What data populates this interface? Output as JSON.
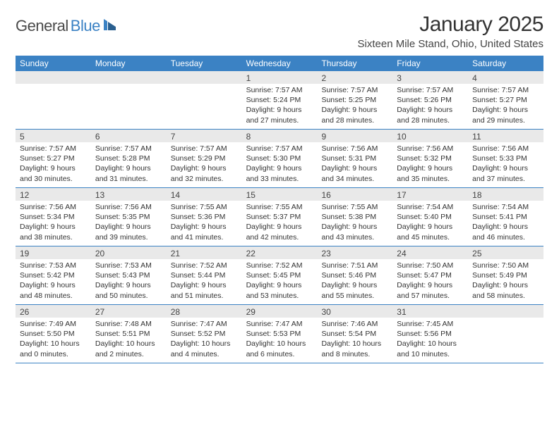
{
  "logo": {
    "text1": "General",
    "text2": "Blue"
  },
  "title": "January 2025",
  "location": "Sixteen Mile Stand, Ohio, United States",
  "weekdays": [
    "Sunday",
    "Monday",
    "Tuesday",
    "Wednesday",
    "Thursday",
    "Friday",
    "Saturday"
  ],
  "colors": {
    "header_bg": "#3b82c4",
    "daynum_bg": "#e9e9e9",
    "text": "#333333",
    "border": "#3b82c4"
  },
  "weeks": [
    [
      {
        "n": "",
        "lines": []
      },
      {
        "n": "",
        "lines": []
      },
      {
        "n": "",
        "lines": []
      },
      {
        "n": "1",
        "lines": [
          "Sunrise: 7:57 AM",
          "Sunset: 5:24 PM",
          "Daylight: 9 hours",
          "and 27 minutes."
        ]
      },
      {
        "n": "2",
        "lines": [
          "Sunrise: 7:57 AM",
          "Sunset: 5:25 PM",
          "Daylight: 9 hours",
          "and 28 minutes."
        ]
      },
      {
        "n": "3",
        "lines": [
          "Sunrise: 7:57 AM",
          "Sunset: 5:26 PM",
          "Daylight: 9 hours",
          "and 28 minutes."
        ]
      },
      {
        "n": "4",
        "lines": [
          "Sunrise: 7:57 AM",
          "Sunset: 5:27 PM",
          "Daylight: 9 hours",
          "and 29 minutes."
        ]
      }
    ],
    [
      {
        "n": "5",
        "lines": [
          "Sunrise: 7:57 AM",
          "Sunset: 5:27 PM",
          "Daylight: 9 hours",
          "and 30 minutes."
        ]
      },
      {
        "n": "6",
        "lines": [
          "Sunrise: 7:57 AM",
          "Sunset: 5:28 PM",
          "Daylight: 9 hours",
          "and 31 minutes."
        ]
      },
      {
        "n": "7",
        "lines": [
          "Sunrise: 7:57 AM",
          "Sunset: 5:29 PM",
          "Daylight: 9 hours",
          "and 32 minutes."
        ]
      },
      {
        "n": "8",
        "lines": [
          "Sunrise: 7:57 AM",
          "Sunset: 5:30 PM",
          "Daylight: 9 hours",
          "and 33 minutes."
        ]
      },
      {
        "n": "9",
        "lines": [
          "Sunrise: 7:56 AM",
          "Sunset: 5:31 PM",
          "Daylight: 9 hours",
          "and 34 minutes."
        ]
      },
      {
        "n": "10",
        "lines": [
          "Sunrise: 7:56 AM",
          "Sunset: 5:32 PM",
          "Daylight: 9 hours",
          "and 35 minutes."
        ]
      },
      {
        "n": "11",
        "lines": [
          "Sunrise: 7:56 AM",
          "Sunset: 5:33 PM",
          "Daylight: 9 hours",
          "and 37 minutes."
        ]
      }
    ],
    [
      {
        "n": "12",
        "lines": [
          "Sunrise: 7:56 AM",
          "Sunset: 5:34 PM",
          "Daylight: 9 hours",
          "and 38 minutes."
        ]
      },
      {
        "n": "13",
        "lines": [
          "Sunrise: 7:56 AM",
          "Sunset: 5:35 PM",
          "Daylight: 9 hours",
          "and 39 minutes."
        ]
      },
      {
        "n": "14",
        "lines": [
          "Sunrise: 7:55 AM",
          "Sunset: 5:36 PM",
          "Daylight: 9 hours",
          "and 41 minutes."
        ]
      },
      {
        "n": "15",
        "lines": [
          "Sunrise: 7:55 AM",
          "Sunset: 5:37 PM",
          "Daylight: 9 hours",
          "and 42 minutes."
        ]
      },
      {
        "n": "16",
        "lines": [
          "Sunrise: 7:55 AM",
          "Sunset: 5:38 PM",
          "Daylight: 9 hours",
          "and 43 minutes."
        ]
      },
      {
        "n": "17",
        "lines": [
          "Sunrise: 7:54 AM",
          "Sunset: 5:40 PM",
          "Daylight: 9 hours",
          "and 45 minutes."
        ]
      },
      {
        "n": "18",
        "lines": [
          "Sunrise: 7:54 AM",
          "Sunset: 5:41 PM",
          "Daylight: 9 hours",
          "and 46 minutes."
        ]
      }
    ],
    [
      {
        "n": "19",
        "lines": [
          "Sunrise: 7:53 AM",
          "Sunset: 5:42 PM",
          "Daylight: 9 hours",
          "and 48 minutes."
        ]
      },
      {
        "n": "20",
        "lines": [
          "Sunrise: 7:53 AM",
          "Sunset: 5:43 PM",
          "Daylight: 9 hours",
          "and 50 minutes."
        ]
      },
      {
        "n": "21",
        "lines": [
          "Sunrise: 7:52 AM",
          "Sunset: 5:44 PM",
          "Daylight: 9 hours",
          "and 51 minutes."
        ]
      },
      {
        "n": "22",
        "lines": [
          "Sunrise: 7:52 AM",
          "Sunset: 5:45 PM",
          "Daylight: 9 hours",
          "and 53 minutes."
        ]
      },
      {
        "n": "23",
        "lines": [
          "Sunrise: 7:51 AM",
          "Sunset: 5:46 PM",
          "Daylight: 9 hours",
          "and 55 minutes."
        ]
      },
      {
        "n": "24",
        "lines": [
          "Sunrise: 7:50 AM",
          "Sunset: 5:47 PM",
          "Daylight: 9 hours",
          "and 57 minutes."
        ]
      },
      {
        "n": "25",
        "lines": [
          "Sunrise: 7:50 AM",
          "Sunset: 5:49 PM",
          "Daylight: 9 hours",
          "and 58 minutes."
        ]
      }
    ],
    [
      {
        "n": "26",
        "lines": [
          "Sunrise: 7:49 AM",
          "Sunset: 5:50 PM",
          "Daylight: 10 hours",
          "and 0 minutes."
        ]
      },
      {
        "n": "27",
        "lines": [
          "Sunrise: 7:48 AM",
          "Sunset: 5:51 PM",
          "Daylight: 10 hours",
          "and 2 minutes."
        ]
      },
      {
        "n": "28",
        "lines": [
          "Sunrise: 7:47 AM",
          "Sunset: 5:52 PM",
          "Daylight: 10 hours",
          "and 4 minutes."
        ]
      },
      {
        "n": "29",
        "lines": [
          "Sunrise: 7:47 AM",
          "Sunset: 5:53 PM",
          "Daylight: 10 hours",
          "and 6 minutes."
        ]
      },
      {
        "n": "30",
        "lines": [
          "Sunrise: 7:46 AM",
          "Sunset: 5:54 PM",
          "Daylight: 10 hours",
          "and 8 minutes."
        ]
      },
      {
        "n": "31",
        "lines": [
          "Sunrise: 7:45 AM",
          "Sunset: 5:56 PM",
          "Daylight: 10 hours",
          "and 10 minutes."
        ]
      },
      {
        "n": "",
        "lines": []
      }
    ]
  ]
}
